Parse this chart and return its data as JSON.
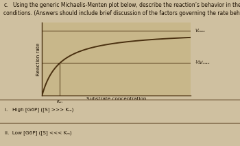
{
  "title_letter": "c.",
  "title_line1": "      Using the generic Michaelis-Menten plot below, describe the reaction’s behavior in the following",
  "title_line2": "conditions. (Answers should include brief discussion of the factors governing the rate behavior observed.)",
  "xlabel": "Substrate concentration",
  "ylabel": "Reaction rate",
  "vmax_label": "Vₘₐₓ",
  "half_vmax_label": "½Vₘₐₓ",
  "km_label": "Kₘ",
  "question_i": "i.   High [G6P] ([S] >>> Kₘ)",
  "question_ii": "ii.  Low [G6P] ([S] <<< Kₘ)",
  "bg_color": "#cfc0a0",
  "plot_bg": "#c8b78a",
  "curve_color": "#4a3010",
  "line_color": "#4a3010",
  "text_color": "#1a0e00",
  "sep_color": "#5a4020",
  "km_value": 0.12,
  "vmax_value": 1.0,
  "xlim": [
    0,
    1.0
  ],
  "ylim": [
    0,
    1.12
  ]
}
